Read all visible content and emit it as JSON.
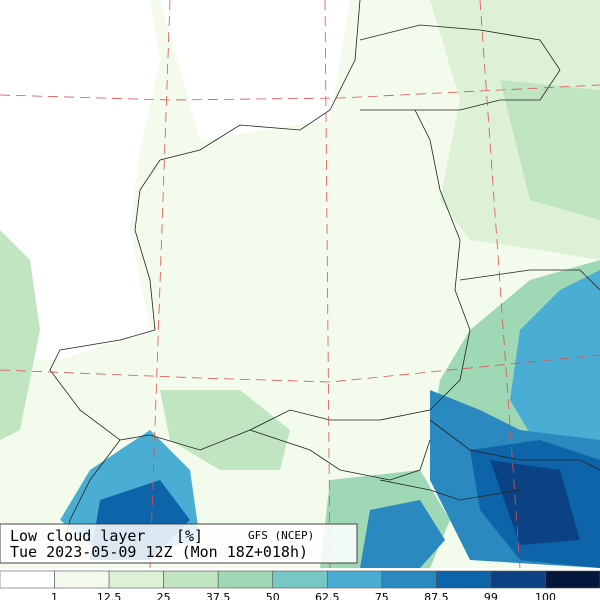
{
  "map": {
    "title": "Low cloud layer",
    "unit": "[%]",
    "source": "GFS (NCEP)",
    "valid_time": "Tue 2023-05-09 12Z (Mon 18Z+018h)"
  },
  "legend": {
    "labels": [
      1,
      12.5,
      25,
      37.5,
      50,
      62.5,
      75,
      87.5,
      99,
      100
    ],
    "colors": [
      "#ffffff",
      "#f3fbec",
      "#ddf1d7",
      "#c0e5c0",
      "#9fd8b4",
      "#75c8c3",
      "#4aaed4",
      "#2a8ac0",
      "#0e64a8",
      "#0a4284",
      "#05173d"
    ]
  }
}
